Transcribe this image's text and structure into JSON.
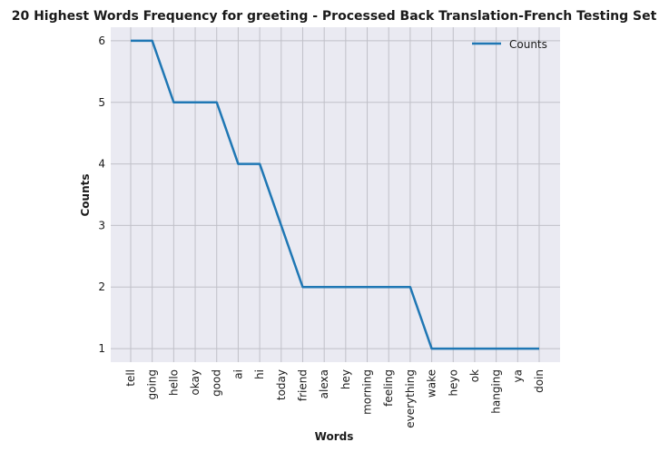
{
  "chart_data": {
    "type": "line",
    "title": "20 Highest Words Frequency for greeting - Processed Back Translation-French Testing Set",
    "xlabel": "Words",
    "ylabel": "Counts",
    "categories": [
      "tell",
      "going",
      "hello",
      "okay",
      "good",
      "ai",
      "hi",
      "today",
      "friend",
      "alexa",
      "hey",
      "morning",
      "feeling",
      "everything",
      "wake",
      "heyo",
      "ok",
      "hanging",
      "ya",
      "doin"
    ],
    "series": [
      {
        "name": "Counts",
        "values": [
          6,
          6,
          5,
          5,
          5,
          4,
          4,
          3,
          2,
          2,
          2,
          2,
          2,
          2,
          1,
          1,
          1,
          1,
          1,
          1
        ]
      }
    ],
    "yticks": [
      1,
      2,
      3,
      4,
      5,
      6
    ],
    "ylim": [
      0.78,
      6.22
    ],
    "grid": true,
    "legend": "top-right",
    "colors": {
      "line": "#1f77b4",
      "background": "#eaeaf2",
      "grid": "#c0c0c8"
    }
  }
}
